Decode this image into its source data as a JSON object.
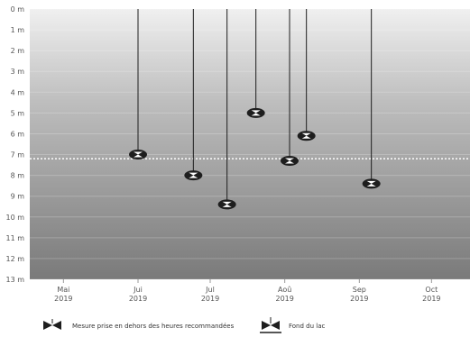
{
  "chart_data": {
    "type": "scatter",
    "title": "",
    "xlabel": "",
    "ylabel": "",
    "y_unit": "m",
    "y_axis_inverted": true,
    "ylim": [
      0,
      13
    ],
    "y_ticks": [
      0,
      1,
      2,
      3,
      4,
      5,
      6,
      7,
      8,
      9,
      10,
      11,
      12,
      13
    ],
    "y_tick_labels": [
      "0 m",
      "1 m",
      "2 m",
      "3 m",
      "4 m",
      "5 m",
      "6 m",
      "7 m",
      "8 m",
      "9 m",
      "10 m",
      "11 m",
      "12 m",
      "13 m"
    ],
    "xlim": [
      "2019-05-01",
      "2019-10-31"
    ],
    "x_ticks": [
      {
        "date": "2019-05-15",
        "month": "Mai",
        "year": "2019"
      },
      {
        "date": "2019-06-15",
        "month": "Jui",
        "year": "2019"
      },
      {
        "date": "2019-07-15",
        "month": "Jul",
        "year": "2019"
      },
      {
        "date": "2019-08-15",
        "month": "Aoû",
        "year": "2019"
      },
      {
        "date": "2019-09-15",
        "month": "Sep",
        "year": "2019"
      },
      {
        "date": "2019-10-15",
        "month": "Oct",
        "year": "2019"
      }
    ],
    "grid": true,
    "reference_line": {
      "depth": 7.2,
      "style": "dotted",
      "color": "#ffffff"
    },
    "series": [
      {
        "points": [
          {
            "date": "2019-06-15",
            "depth": 7.0
          },
          {
            "date": "2019-07-08",
            "depth": 8.0
          },
          {
            "date": "2019-07-22",
            "depth": 9.4
          },
          {
            "date": "2019-08-03",
            "depth": 5.0
          },
          {
            "date": "2019-08-17",
            "depth": 7.3
          },
          {
            "date": "2019-08-24",
            "depth": 6.1
          },
          {
            "date": "2019-09-20",
            "depth": 8.4
          }
        ]
      }
    ],
    "legend": {
      "position": "bottom-center",
      "items": [
        {
          "label": "Mesure prise en dehors des heures recommandées",
          "icon": "disk-marker-icon"
        },
        {
          "label": "Fond du lac",
          "icon": "lake-bottom-icon"
        }
      ]
    },
    "colors": {
      "background_top": "#f0f0f0",
      "background_bottom": "#7a7a7a",
      "marker_fill": "#1e1e1e",
      "marker_highlight": "#ffffff",
      "tick_text": "#555555"
    }
  }
}
